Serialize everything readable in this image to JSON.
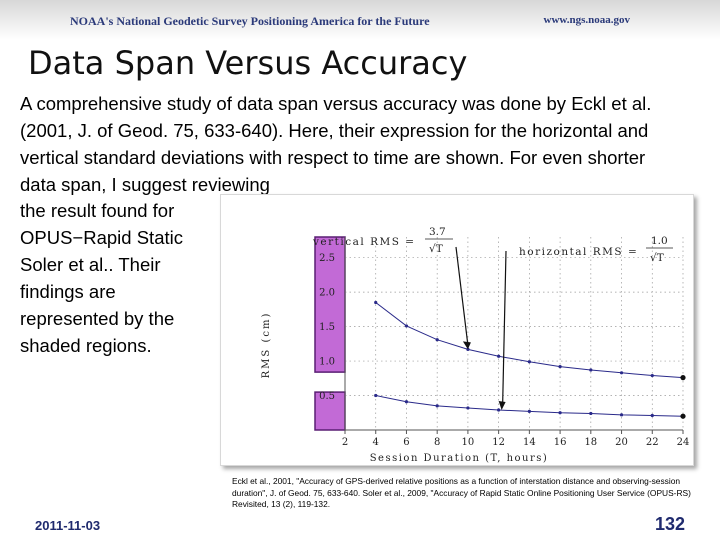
{
  "header": {
    "org_line": "NOAA's National Geodetic Survey Positioning America for the Future",
    "url": "www.ngs.noaa.gov"
  },
  "slide": {
    "title": "Data Span Versus Accuracy",
    "body_text": "A comprehensive study of data span versus accuracy was done by Eckl et al. (2001, J. of Geod. 75, 633-640). Here, their expression for the horizontal and vertical standard deviations with respect to time are shown. For even shorter data span, I suggest reviewing",
    "side_lines": [
      "the result found for",
      "OPUS−Rapid Static",
      "Soler et al.. Their",
      "findings are",
      "represented by the",
      "shaded regions."
    ],
    "footnote": "Eckl et al., 2001, \"Accuracy of GPS-derived relative positions as a function of interstation distance and observing-session duration\", J. of Geod. 75, 633-640. Soler et al., 2009, \"Accuracy of Rapid Static Online Positioning User Service (OPUS-RS) Revisited, 13 (2), 119-132.",
    "date": "2011-11-03",
    "page_number": "132"
  },
  "colors": {
    "shade_fill": "#c26ad6",
    "shade_border": "#5a1e73",
    "curve": "#2a2a8a",
    "title_text": "#1f2a6e"
  },
  "chart_data": {
    "type": "line",
    "xlabel": "Session Duration (T, hours)",
    "ylabel": "RMS (cm)",
    "x_ticks": [
      "2",
      "4",
      "6",
      "8",
      "10",
      "12",
      "14",
      "16",
      "18",
      "20",
      "22",
      "24"
    ],
    "y_ticks": [
      "0.5",
      "1.0",
      "1.5",
      "2.0",
      "2.5"
    ],
    "xlim": [
      2,
      24
    ],
    "ylim": [
      0,
      2.8
    ],
    "annotations": {
      "vertical_label": "vertical RMS = ",
      "vertical_num": "3.7",
      "horizontal_label": "horizontal RMS = ",
      "horizontal_num": "1.0",
      "denominator": "√T"
    },
    "series": [
      {
        "x": [
          4,
          6,
          8,
          10,
          12,
          14,
          16,
          18,
          20,
          22,
          24
        ],
        "values": [
          1.85,
          1.51,
          1.31,
          1.17,
          1.07,
          0.99,
          0.92,
          0.87,
          0.83,
          0.79,
          0.76
        ]
      },
      {
        "x": [
          4,
          6,
          8,
          10,
          12,
          14,
          16,
          18,
          20,
          22,
          24
        ],
        "values": [
          0.5,
          0.41,
          0.35,
          0.32,
          0.29,
          0.27,
          0.25,
          0.24,
          0.22,
          0.21,
          0.2
        ]
      }
    ],
    "shaded_regions": [
      {
        "y_range": [
          0.84,
          2.8
        ]
      },
      {
        "y_range": [
          0.0,
          0.55
        ]
      }
    ]
  }
}
